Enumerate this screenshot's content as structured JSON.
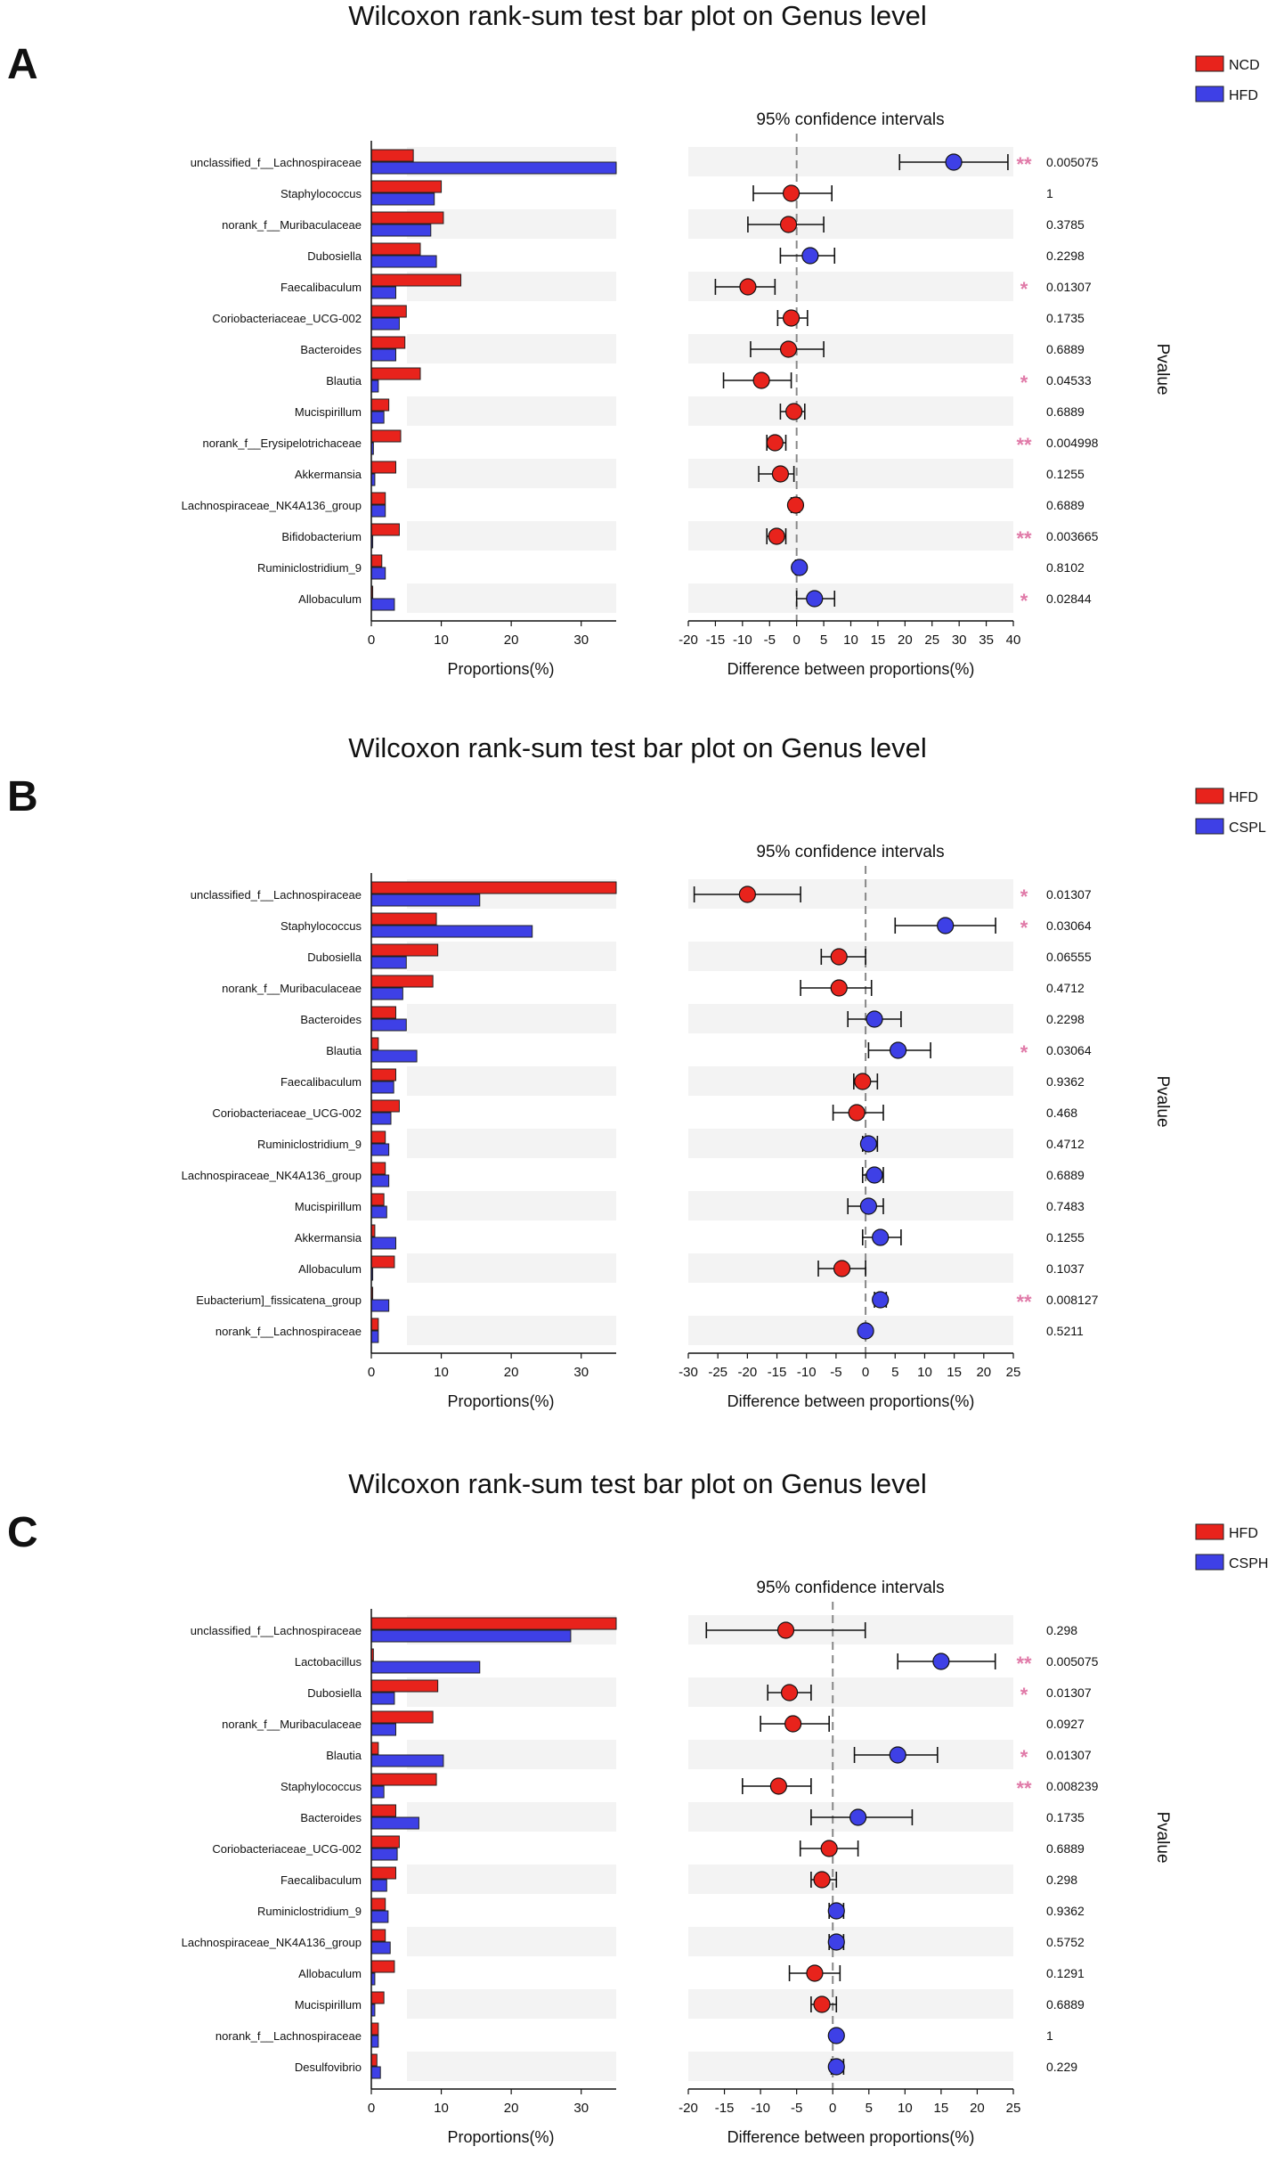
{
  "colors": {
    "red": "#e8231c",
    "blue": "#3e40e6",
    "star": "#e07aa8",
    "stripe": "#f3f3f3",
    "border": "#222222"
  },
  "chart_data": [
    {
      "type": "bar",
      "panel_label": "A",
      "title": "Wilcoxon rank-sum test bar plot on Genus level",
      "ci_title": "95% confidence intervals",
      "xlabel_left": "Proportions(%)",
      "xlabel_right": "Difference between proportions(%)",
      "pvalue_label": "Pvalue",
      "legend": [
        "NCD",
        "HFD"
      ],
      "left_xlim": [
        0,
        35
      ],
      "left_ticks": [
        0,
        10,
        20,
        30
      ],
      "right_xlim": [
        -20,
        40
      ],
      "right_ticks": [
        -20,
        -15,
        -10,
        -5,
        0,
        5,
        10,
        15,
        20,
        25,
        30,
        35,
        40
      ],
      "taxa": [
        "unclassified_f__Lachnospiraceae",
        "Staphylococcus",
        "norank_f__Muribaculaceae",
        "Dubosiella",
        "Faecalibaculum",
        "Coriobacteriaceae_UCG-002",
        "Bacteroides",
        "Blautia",
        "Mucispirillum",
        "norank_f__Erysipelotrichaceae",
        "Akkermansia",
        "Lachnospiraceae_NK4A136_group",
        "Bifidobacterium",
        "Ruminiclostridium_9",
        "Allobaculum"
      ],
      "series": [
        {
          "name": "NCD",
          "values": [
            6.0,
            10.0,
            10.3,
            7.0,
            12.8,
            5.0,
            4.8,
            7.0,
            2.5,
            4.2,
            3.5,
            2.0,
            4.0,
            1.5,
            0.2
          ]
        },
        {
          "name": "HFD",
          "values": [
            35.0,
            9.0,
            8.5,
            9.3,
            3.5,
            4.0,
            3.5,
            1.0,
            1.8,
            0.3,
            0.5,
            2.0,
            0.2,
            2.0,
            3.3
          ]
        }
      ],
      "diff": [
        29,
        -1,
        -1.5,
        2.5,
        -9,
        -1,
        -1.5,
        -6.5,
        -0.5,
        -4,
        -3,
        -0.2,
        -3.7,
        0.5,
        3.3
      ],
      "ci_low": [
        19,
        -8,
        -9,
        -3,
        -15,
        -3.5,
        -8.5,
        -13.5,
        -3,
        -5.5,
        -7,
        -1,
        -5.5,
        -0.2,
        0
      ],
      "ci_high": [
        39,
        6.5,
        5,
        7,
        -4,
        2,
        5,
        -1,
        1.5,
        -2,
        -0.5,
        0.5,
        -2,
        1,
        7
      ],
      "pvalues": [
        "0.005075",
        "1",
        "0.3785",
        "0.2298",
        "0.01307",
        "0.1735",
        "0.6889",
        "0.04533",
        "0.6889",
        "0.004998",
        "0.1255",
        "0.6889",
        "0.003665",
        "0.8102",
        "0.02844"
      ],
      "stars": [
        "**",
        "",
        "",
        "",
        "*",
        "",
        "",
        "*",
        "",
        "**",
        "",
        "",
        "**",
        "",
        "*"
      ]
    },
    {
      "type": "bar",
      "panel_label": "B",
      "title": "Wilcoxon rank-sum test bar plot on Genus level",
      "ci_title": "95% confidence intervals",
      "xlabel_left": "Proportions(%)",
      "xlabel_right": "Difference between proportions(%)",
      "pvalue_label": "Pvalue",
      "legend": [
        "HFD",
        "CSPL"
      ],
      "left_xlim": [
        0,
        35
      ],
      "left_ticks": [
        0,
        10,
        20,
        30
      ],
      "right_xlim": [
        -30,
        25
      ],
      "right_ticks": [
        -30,
        -25,
        -20,
        -15,
        -10,
        -5,
        0,
        5,
        10,
        15,
        20,
        25
      ],
      "taxa": [
        "unclassified_f__Lachnospiraceae",
        "Staphylococcus",
        "Dubosiella",
        "norank_f__Muribaculaceae",
        "Bacteroides",
        "Blautia",
        "Faecalibaculum",
        "Coriobacteriaceae_UCG-002",
        "Ruminiclostridium_9",
        "Lachnospiraceae_NK4A136_group",
        "Mucispirillum",
        "Akkermansia",
        "Allobaculum",
        "Eubacterium]_fissicatena_group",
        "norank_f__Lachnospiraceae"
      ],
      "series": [
        {
          "name": "HFD",
          "values": [
            35.0,
            9.3,
            9.5,
            8.8,
            3.5,
            1.0,
            3.5,
            4.0,
            2.0,
            2.0,
            1.8,
            0.5,
            3.3,
            0.2,
            1.0
          ]
        },
        {
          "name": "CSPL",
          "values": [
            15.5,
            23.0,
            5.0,
            4.5,
            5.0,
            6.5,
            3.2,
            2.8,
            2.5,
            2.5,
            2.2,
            3.5,
            0.2,
            2.5,
            1.0
          ]
        }
      ],
      "diff": [
        -20,
        13.5,
        -4.5,
        -4.5,
        1.5,
        5.5,
        -0.5,
        -1.5,
        0.5,
        1.5,
        0.5,
        2.5,
        -4,
        2.5,
        0
      ],
      "ci_low": [
        -29,
        5,
        -7.5,
        -11,
        -3,
        0.5,
        -2,
        -5.5,
        -0.5,
        -0.5,
        -3,
        -0.5,
        -8,
        1.5,
        -0.3
      ],
      "ci_high": [
        -11,
        22,
        0,
        1,
        6,
        11,
        2,
        3,
        2,
        3,
        3,
        6,
        0,
        3.5,
        0.3
      ],
      "pvalues": [
        "0.01307",
        "0.03064",
        "0.06555",
        "0.4712",
        "0.2298",
        "0.03064",
        "0.9362",
        "0.468",
        "0.4712",
        "0.6889",
        "0.7483",
        "0.1255",
        "0.1037",
        "0.008127",
        "0.5211"
      ],
      "stars": [
        "*",
        "*",
        "",
        "",
        "",
        "*",
        "",
        "",
        "",
        "",
        "",
        "",
        "",
        "**",
        ""
      ]
    },
    {
      "type": "bar",
      "panel_label": "C",
      "title": "Wilcoxon rank-sum test bar plot on Genus level",
      "ci_title": "95% confidence intervals",
      "xlabel_left": "Proportions(%)",
      "xlabel_right": "Difference between proportions(%)",
      "pvalue_label": "Pvalue",
      "legend": [
        "HFD",
        "CSPH"
      ],
      "left_xlim": [
        0,
        35
      ],
      "left_ticks": [
        0,
        10,
        20,
        30
      ],
      "right_xlim": [
        -20,
        25
      ],
      "right_ticks": [
        -20,
        -15,
        -10,
        -5,
        0,
        5,
        10,
        15,
        20,
        25
      ],
      "taxa": [
        "unclassified_f__Lachnospiraceae",
        "Lactobacillus",
        "Dubosiella",
        "norank_f__Muribaculaceae",
        "Blautia",
        "Staphylococcus",
        "Bacteroides",
        "Coriobacteriaceae_UCG-002",
        "Faecalibaculum",
        "Ruminiclostridium_9",
        "Lachnospiraceae_NK4A136_group",
        "Allobaculum",
        "Mucispirillum",
        "norank_f__Lachnospiraceae",
        "Desulfovibrio"
      ],
      "series": [
        {
          "name": "HFD",
          "values": [
            35.0,
            0.3,
            9.5,
            8.8,
            1.0,
            9.3,
            3.5,
            4.0,
            3.5,
            2.0,
            2.0,
            3.3,
            1.8,
            1.0,
            0.8
          ]
        },
        {
          "name": "CSPH",
          "values": [
            28.5,
            15.5,
            3.3,
            3.5,
            10.3,
            1.8,
            6.8,
            3.7,
            2.2,
            2.4,
            2.7,
            0.5,
            0.5,
            1.0,
            1.3
          ]
        }
      ],
      "diff": [
        -6.5,
        15,
        -6,
        -5.5,
        9,
        -7.5,
        3.5,
        -0.5,
        -1.5,
        0.5,
        0.5,
        -2.5,
        -1.5,
        0.5,
        0.5
      ],
      "ci_low": [
        -17.5,
        9,
        -9,
        -10,
        3,
        -12.5,
        -3,
        -4.5,
        -3,
        -0.5,
        -0.5,
        -6,
        -3,
        0.2,
        -0.2
      ],
      "ci_high": [
        4.5,
        22.5,
        -3,
        -0.5,
        14.5,
        -3,
        11,
        3.5,
        0.5,
        1.5,
        1.5,
        1,
        0.5,
        0.8,
        1.5
      ],
      "pvalues": [
        "0.298",
        "0.005075",
        "0.01307",
        "0.0927",
        "0.01307",
        "0.008239",
        "0.1735",
        "0.6889",
        "0.298",
        "0.9362",
        "0.5752",
        "0.1291",
        "0.6889",
        "1",
        "0.229"
      ],
      "stars": [
        "",
        "**",
        "*",
        "",
        "*",
        "**",
        "",
        "",
        "",
        "",
        "",
        "",
        "",
        "",
        ""
      ]
    }
  ]
}
